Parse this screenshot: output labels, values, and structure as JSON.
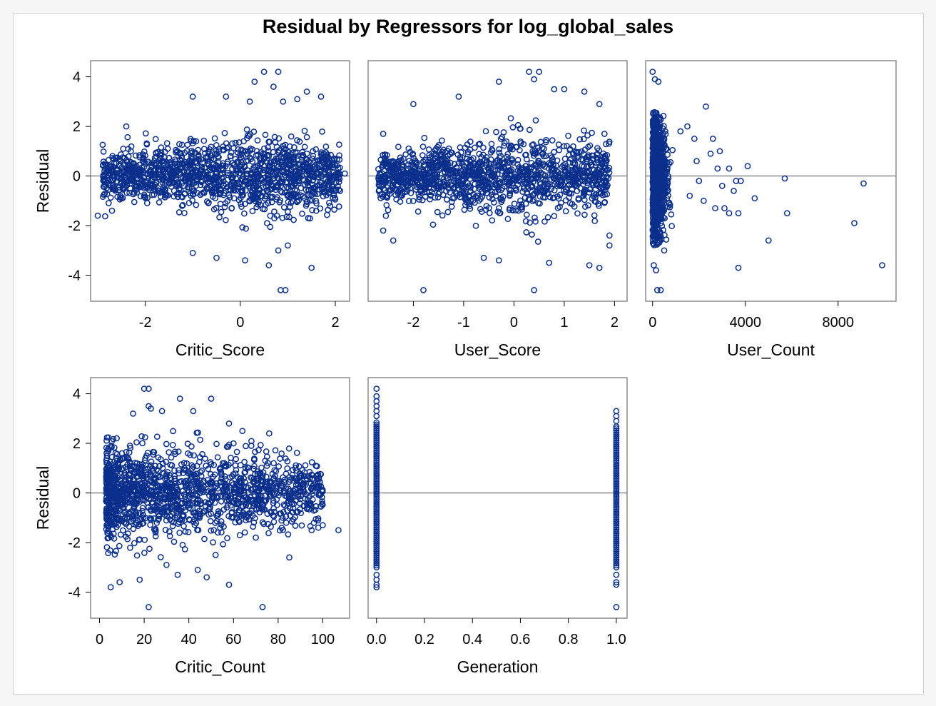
{
  "chart_data": {
    "type": "scatter",
    "title": "Residual by Regressors for log_global_sales",
    "ylabel": "Residual",
    "colors": {
      "marker": "#0a2f8c",
      "frame": "#8c8c8c",
      "refline": "#8c8c8c"
    },
    "grid": false,
    "panels": [
      {
        "id": "critic-score",
        "xlabel": "Critic_Score",
        "xlim": [
          -3.15,
          2.3
        ],
        "ylim": [
          -5.05,
          4.65
        ],
        "xticks": [
          {
            "v": -2,
            "label": "-2"
          },
          {
            "v": 0,
            "label": "0"
          },
          {
            "v": 2,
            "label": "2"
          }
        ],
        "yticks": [
          {
            "v": 4,
            "label": "4"
          },
          {
            "v": 2,
            "label": "2"
          },
          {
            "v": 0,
            "label": "0"
          },
          {
            "v": -2,
            "label": "-2"
          },
          {
            "v": -4,
            "label": "-4"
          }
        ],
        "ylabel": "Residual",
        "reference_y": 0,
        "cluster": {
          "xmin": -2.9,
          "xmax": 2.1,
          "center_x": 0.3,
          "sd": 0.75,
          "n": 1400
        },
        "points": [
          [
            -0.3,
            3.2
          ],
          [
            -1.0,
            3.2
          ],
          [
            0.3,
            3.8
          ],
          [
            0.5,
            4.2
          ],
          [
            0.8,
            4.2
          ],
          [
            0.7,
            3.6
          ],
          [
            1.4,
            3.4
          ],
          [
            1.7,
            3.2
          ],
          [
            1.2,
            3.1
          ],
          [
            0.95,
            -4.6
          ],
          [
            0.85,
            -4.6
          ],
          [
            1.5,
            -3.7
          ],
          [
            0.6,
            -3.6
          ],
          [
            0.1,
            -3.4
          ],
          [
            -0.5,
            -3.3
          ],
          [
            -1.0,
            -3.1
          ],
          [
            1.0,
            -2.8
          ],
          [
            0.8,
            -3.0
          ],
          [
            -2.7,
            -1.4
          ],
          [
            -3.0,
            -1.6
          ],
          [
            2.1,
            -0.6
          ],
          [
            2.2,
            0.1
          ],
          [
            -2.4,
            2.0
          ],
          [
            0.9,
            3.0
          ],
          [
            0.2,
            3.0
          ]
        ]
      },
      {
        "id": "user-score",
        "xlabel": "User_Score",
        "xlim": [
          -2.9,
          2.25
        ],
        "ylim": [
          -5.05,
          4.65
        ],
        "xticks": [
          {
            "v": -2,
            "label": "-2"
          },
          {
            "v": -1,
            "label": "-1"
          },
          {
            "v": 0,
            "label": "0"
          },
          {
            "v": 1,
            "label": "1"
          },
          {
            "v": 2,
            "label": "2"
          }
        ],
        "yticks": [],
        "ylabel": "",
        "reference_y": 0,
        "cluster": {
          "xmin": -2.7,
          "xmax": 1.9,
          "center_x": 0.5,
          "sd": 0.8,
          "n": 1300
        },
        "points": [
          [
            -1.8,
            -4.6
          ],
          [
            0.4,
            -4.6
          ],
          [
            -2.0,
            2.9
          ],
          [
            -1.1,
            3.2
          ],
          [
            -0.3,
            3.8
          ],
          [
            0.3,
            4.2
          ],
          [
            0.5,
            4.2
          ],
          [
            0.4,
            3.9
          ],
          [
            1.0,
            3.5
          ],
          [
            1.4,
            3.4
          ],
          [
            0.8,
            3.5
          ],
          [
            1.7,
            2.9
          ],
          [
            1.7,
            -3.7
          ],
          [
            1.5,
            -3.6
          ],
          [
            0.7,
            -3.5
          ],
          [
            -0.6,
            -3.3
          ],
          [
            -0.3,
            -3.4
          ],
          [
            1.9,
            -2.8
          ],
          [
            1.9,
            -2.4
          ],
          [
            -2.4,
            -2.6
          ],
          [
            -2.6,
            -2.2
          ],
          [
            -2.6,
            1.7
          ],
          [
            1.8,
            1.7
          ]
        ]
      },
      {
        "id": "user-count",
        "xlabel": "User_Count",
        "xlim": [
          -300,
          10500
        ],
        "ylim": [
          -5.05,
          4.65
        ],
        "xticks": [
          {
            "v": 0,
            "label": "0"
          },
          {
            "v": 4000,
            "label": "4000"
          },
          {
            "v": 8000,
            "label": "8000"
          }
        ],
        "yticks": [],
        "ylabel": "",
        "reference_y": 0,
        "cluster": {
          "xmin": 0,
          "xmax": 900,
          "center_x": 0,
          "sd": 1.3,
          "n": 1000
        },
        "points": [
          [
            200,
            -4.6
          ],
          [
            350,
            -4.6
          ],
          [
            0,
            4.2
          ],
          [
            100,
            3.9
          ],
          [
            250,
            3.8
          ],
          [
            150,
            -3.8
          ],
          [
            50,
            -3.6
          ],
          [
            500,
            -3.0
          ],
          [
            2300,
            2.8
          ],
          [
            1500,
            2.0
          ],
          [
            2600,
            1.5
          ],
          [
            2900,
            1.0
          ],
          [
            3300,
            0.3
          ],
          [
            3600,
            -0.2
          ],
          [
            3100,
            -1.3
          ],
          [
            2700,
            -1.3
          ],
          [
            3300,
            -1.5
          ],
          [
            3700,
            -1.5
          ],
          [
            4100,
            0.4
          ],
          [
            4400,
            -0.9
          ],
          [
            3800,
            -0.2
          ],
          [
            3500,
            -0.6
          ],
          [
            5000,
            -2.6
          ],
          [
            5700,
            -0.1
          ],
          [
            5800,
            -1.5
          ],
          [
            3700,
            -3.7
          ],
          [
            8700,
            -1.9
          ],
          [
            9100,
            -0.3
          ],
          [
            9900,
            -3.6
          ],
          [
            2000,
            -0.2
          ],
          [
            2500,
            0.9
          ],
          [
            1800,
            1.5
          ],
          [
            1200,
            1.8
          ],
          [
            2200,
            -1.0
          ],
          [
            1900,
            0.6
          ],
          [
            1600,
            -0.8
          ],
          [
            2800,
            0.3
          ],
          [
            3000,
            -0.4
          ]
        ]
      },
      {
        "id": "critic-count",
        "xlabel": "Critic_Count",
        "xlim": [
          -4,
          112
        ],
        "ylim": [
          -5.05,
          4.65
        ],
        "xticks": [
          {
            "v": 0,
            "label": "0"
          },
          {
            "v": 20,
            "label": "20"
          },
          {
            "v": 40,
            "label": "40"
          },
          {
            "v": 60,
            "label": "60"
          },
          {
            "v": 80,
            "label": "80"
          },
          {
            "v": 100,
            "label": "100"
          }
        ],
        "yticks": [
          {
            "v": 4,
            "label": "4"
          },
          {
            "v": 2,
            "label": "2"
          },
          {
            "v": 0,
            "label": "0"
          },
          {
            "v": -2,
            "label": "-2"
          },
          {
            "v": -4,
            "label": "-4"
          }
        ],
        "ylabel": "Residual",
        "reference_y": 0,
        "cluster": {
          "xmin": 3,
          "xmax": 100,
          "center_x": 3,
          "sd": 0.95,
          "n": 1500
        },
        "points": [
          [
            20,
            4.2
          ],
          [
            22,
            4.2
          ],
          [
            36,
            3.8
          ],
          [
            50,
            3.8
          ],
          [
            22,
            3.5
          ],
          [
            23,
            3.4
          ],
          [
            42,
            3.3
          ],
          [
            28,
            3.3
          ],
          [
            15,
            3.2
          ],
          [
            58,
            2.8
          ],
          [
            76,
            2.4
          ],
          [
            64,
            2.5
          ],
          [
            90,
            0.7
          ],
          [
            95,
            0.2
          ],
          [
            100,
            -1.3
          ],
          [
            107,
            -1.5
          ],
          [
            98,
            -1.4
          ],
          [
            95,
            -1.5
          ],
          [
            85,
            -2.6
          ],
          [
            58,
            -3.7
          ],
          [
            73,
            -4.6
          ],
          [
            22,
            -4.6
          ],
          [
            5,
            -3.8
          ],
          [
            9,
            -3.6
          ],
          [
            18,
            -3.5
          ],
          [
            35,
            -3.3
          ],
          [
            48,
            -3.4
          ],
          [
            44,
            -3.1
          ],
          [
            30,
            -2.9
          ],
          [
            52,
            -2.5
          ],
          [
            70,
            -1.8
          ],
          [
            82,
            -1.0
          ],
          [
            88,
            -0.3
          ],
          [
            78,
            1.2
          ],
          [
            68,
            1.9
          ],
          [
            60,
            2.0
          ]
        ]
      },
      {
        "id": "generation",
        "xlabel": "Generation",
        "xlim": [
          -0.035,
          1.045
        ],
        "ylim": [
          -5.05,
          4.65
        ],
        "xticks": [
          {
            "v": 0,
            "label": "0.0"
          },
          {
            "v": 0.2,
            "label": "0.2"
          },
          {
            "v": 0.4,
            "label": "0.4"
          },
          {
            "v": 0.6,
            "label": "0.6"
          },
          {
            "v": 0.8,
            "label": "0.8"
          },
          {
            "v": 1.0,
            "label": "1.0"
          }
        ],
        "yticks": [],
        "ylabel": "",
        "reference_y": 0,
        "columns": [
          {
            "x": 0.0,
            "dense": [
              -3.0,
              2.9
            ],
            "extra": [
              3.1,
              3.3,
              3.5,
              3.7,
              3.9,
              4.2,
              -3.3,
              -3.5,
              -3.7,
              -3.8
            ]
          },
          {
            "x": 1.0,
            "dense": [
              -3.0,
              2.7
            ],
            "extra": [
              2.9,
              3.1,
              3.3,
              -3.3,
              -3.6,
              -3.7,
              -4.6
            ]
          }
        ]
      }
    ]
  }
}
